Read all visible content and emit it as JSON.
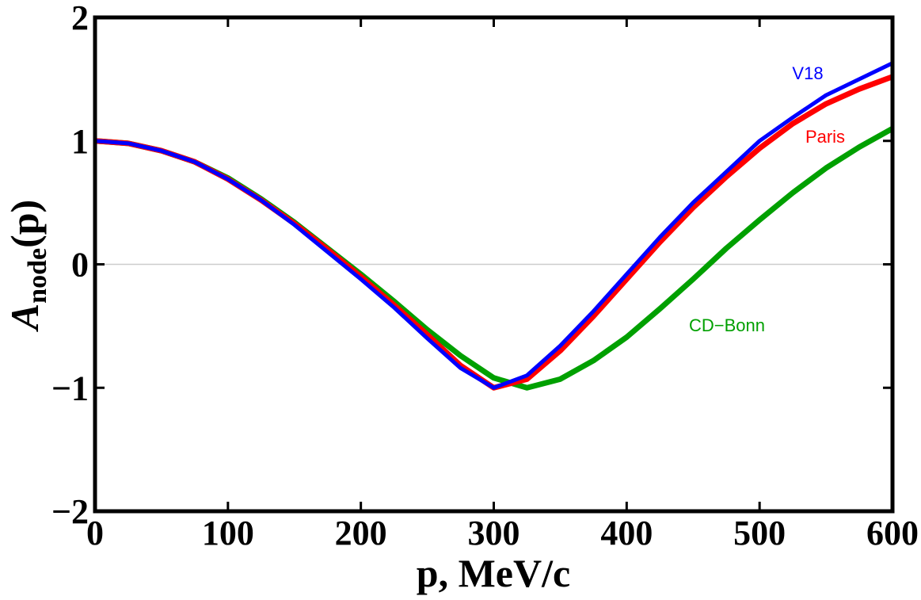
{
  "chart_data": {
    "type": "line",
    "xlabel": "p, MeV/c",
    "ylabel": {
      "main": "A",
      "sub": "node",
      "tail": "(p)"
    },
    "x": [
      0,
      25,
      50,
      75,
      100,
      125,
      150,
      175,
      200,
      225,
      250,
      275,
      300,
      325,
      350,
      375,
      400,
      425,
      450,
      475,
      500,
      525,
      550,
      575,
      600
    ],
    "series": [
      {
        "name": "V18",
        "color": "#0000ff",
        "values": [
          1,
          0.98,
          0.92,
          0.83,
          0.69,
          0.52,
          0.32,
          0.1,
          -0.12,
          -0.35,
          -0.6,
          -0.84,
          -1.0,
          -0.9,
          -0.66,
          -0.38,
          -0.08,
          0.22,
          0.5,
          0.75,
          1.0,
          1.19,
          1.37,
          1.5,
          1.63
        ]
      },
      {
        "name": "Paris",
        "color": "#ff0000",
        "values": [
          1,
          0.98,
          0.92,
          0.83,
          0.69,
          0.52,
          0.33,
          0.12,
          -0.1,
          -0.33,
          -0.57,
          -0.82,
          -1.0,
          -0.93,
          -0.7,
          -0.42,
          -0.12,
          0.18,
          0.46,
          0.71,
          0.94,
          1.14,
          1.3,
          1.42,
          1.52
        ]
      },
      {
        "name": "CD−Bonn",
        "color": "#00a000",
        "values": [
          1,
          0.98,
          0.92,
          0.83,
          0.7,
          0.53,
          0.34,
          0.13,
          -0.08,
          -0.3,
          -0.53,
          -0.74,
          -0.92,
          -1.0,
          -0.93,
          -0.78,
          -0.59,
          -0.36,
          -0.12,
          0.13,
          0.36,
          0.58,
          0.78,
          0.95,
          1.1
        ]
      }
    ],
    "xlim": [
      0,
      600
    ],
    "xticks": [
      0,
      100,
      200,
      300,
      400,
      500,
      600
    ],
    "ylim": [
      -2,
      2
    ],
    "yticks": [
      {
        "value": -2,
        "label": "−2"
      },
      {
        "value": -1,
        "label": "−1"
      },
      0,
      1,
      2
    ]
  }
}
